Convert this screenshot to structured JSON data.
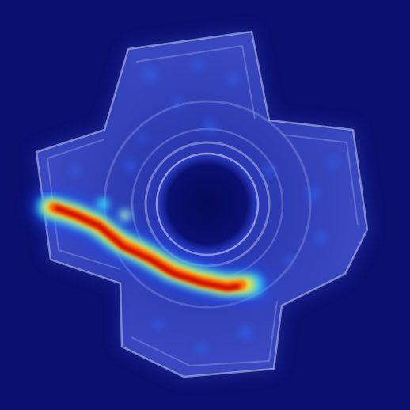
{
  "image": {
    "subject": "metal-part-with-four-lugs",
    "overlay": "anomaly-heatmap",
    "colors": {
      "background": "#0a0f6e",
      "part_glow": "#8e9cff",
      "part_edge": "#c9cff5",
      "hole": "#060a5a",
      "heat_low": "#1d4dff",
      "heat_mid": "#33e0ff",
      "heat_warm": "#ffe933",
      "heat_hot": "#ff6a00",
      "heat_peak": "#c80000"
    },
    "icons": []
  }
}
